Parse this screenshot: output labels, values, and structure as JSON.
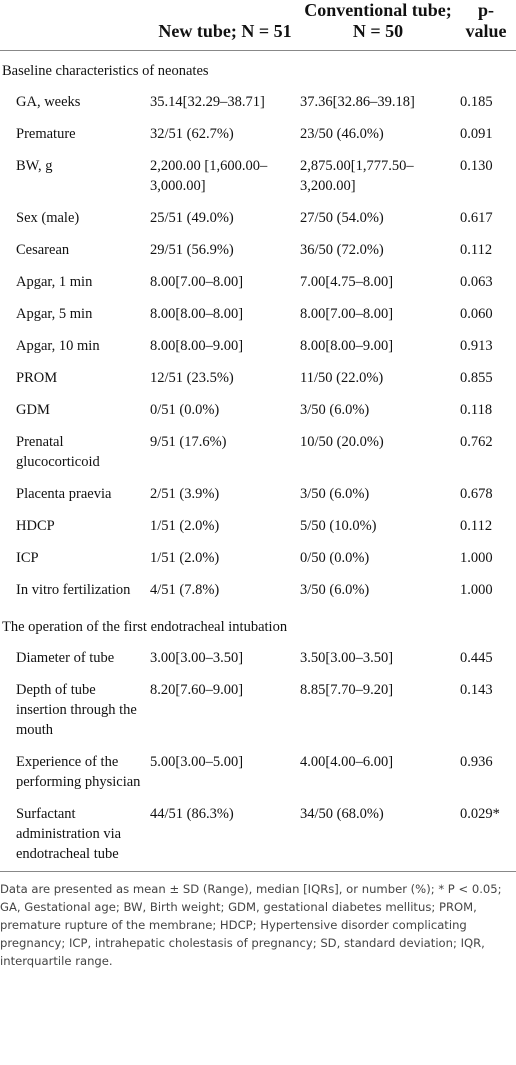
{
  "table": {
    "columns": [
      "New tube; N = 51",
      "Conventional tube; N = 50",
      "p-value"
    ],
    "sections": [
      {
        "title": "Baseline characteristics of neonates",
        "rows": [
          [
            "GA, weeks",
            "35.14[32.29–38.71]",
            "37.36[32.86–39.18]",
            "0.185"
          ],
          [
            "Premature",
            "32/51 (62.7%)",
            "23/50 (46.0%)",
            "0.091"
          ],
          [
            "BW, g",
            "2,200.00 [1,600.00–3,000.00]",
            "2,875.00[1,777.50–3,200.00]",
            "0.130"
          ],
          [
            "Sex (male)",
            "25/51 (49.0%)",
            "27/50 (54.0%)",
            "0.617"
          ],
          [
            "Cesarean",
            "29/51 (56.9%)",
            "36/50 (72.0%)",
            "0.112"
          ],
          [
            "Apgar, 1 min",
            "8.00[7.00–8.00]",
            "7.00[4.75–8.00]",
            "0.063"
          ],
          [
            "Apgar, 5 min",
            "8.00[8.00–8.00]",
            "8.00[7.00–8.00]",
            "0.060"
          ],
          [
            "Apgar, 10 min",
            "8.00[8.00–9.00]",
            "8.00[8.00–9.00]",
            "0.913"
          ],
          [
            "PROM",
            "12/51 (23.5%)",
            "11/50 (22.0%)",
            "0.855"
          ],
          [
            "GDM",
            "0/51 (0.0%)",
            "3/50 (6.0%)",
            "0.118"
          ],
          [
            "Prenatal glucocorticoid",
            "9/51 (17.6%)",
            "10/50 (20.0%)",
            "0.762"
          ],
          [
            "Placenta praevia",
            "2/51 (3.9%)",
            "3/50 (6.0%)",
            "0.678"
          ],
          [
            "HDCP",
            "1/51 (2.0%)",
            "5/50 (10.0%)",
            "0.112"
          ],
          [
            "ICP",
            "1/51 (2.0%)",
            "0/50 (0.0%)",
            "1.000"
          ],
          [
            "In vitro fertilization",
            "4/51 (7.8%)",
            "3/50 (6.0%)",
            "1.000"
          ]
        ]
      },
      {
        "title": "The operation of the first endotracheal intubation",
        "rows": [
          [
            "Diameter of tube",
            "3.00[3.00–3.50]",
            "3.50[3.00–3.50]",
            "0.445"
          ],
          [
            "Depth of tube insertion through the mouth",
            "8.20[7.60–9.00]",
            "8.85[7.70–9.20]",
            "0.143"
          ],
          [
            "Experience of the performing physician",
            "5.00[3.00–5.00]",
            "4.00[4.00–6.00]",
            "0.936"
          ],
          [
            "Surfactant administration via endotracheal tube",
            "44/51 (86.3%)",
            "34/50 (68.0%)",
            "0.029*"
          ]
        ]
      }
    ],
    "footnote": "Data are presented as mean ± SD (Range), median [IQRs], or number (%); * P < 0.05; GA, Gestational age; BW, Birth weight; GDM, gestational diabetes mellitus; PROM, premature rupture of the membrane; HDCP; Hypertensive disorder complicating pregnancy; ICP, intrahepatic cholestasis of pregnancy; SD, standard deviation; IQR, interquartile range."
  }
}
